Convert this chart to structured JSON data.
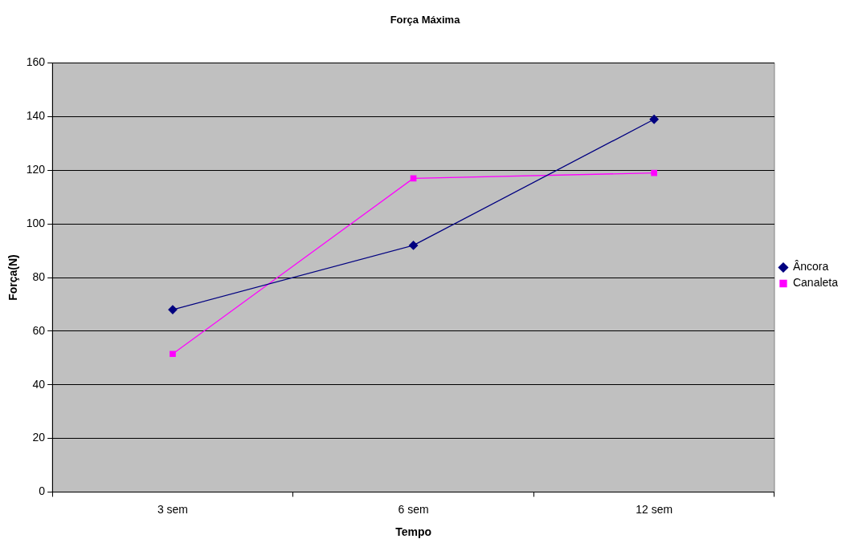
{
  "chart_data": {
    "type": "line",
    "title": "Força Máxima",
    "xlabel": "Tempo",
    "ylabel": "Força(N)",
    "categories": [
      "3 sem",
      "6 sem",
      "12 sem"
    ],
    "series": [
      {
        "name": "Âncora",
        "color": "#000080",
        "marker": "diamond",
        "values": [
          68,
          92,
          139
        ]
      },
      {
        "name": "Canaleta",
        "color": "#ff00ff",
        "marker": "square",
        "values": [
          51.5,
          117,
          119
        ]
      }
    ],
    "ylim": [
      0,
      160
    ],
    "yticks": [
      0,
      20,
      40,
      60,
      80,
      100,
      120,
      140,
      160
    ],
    "grid": "y",
    "legend": "right",
    "line_style": "solid"
  }
}
